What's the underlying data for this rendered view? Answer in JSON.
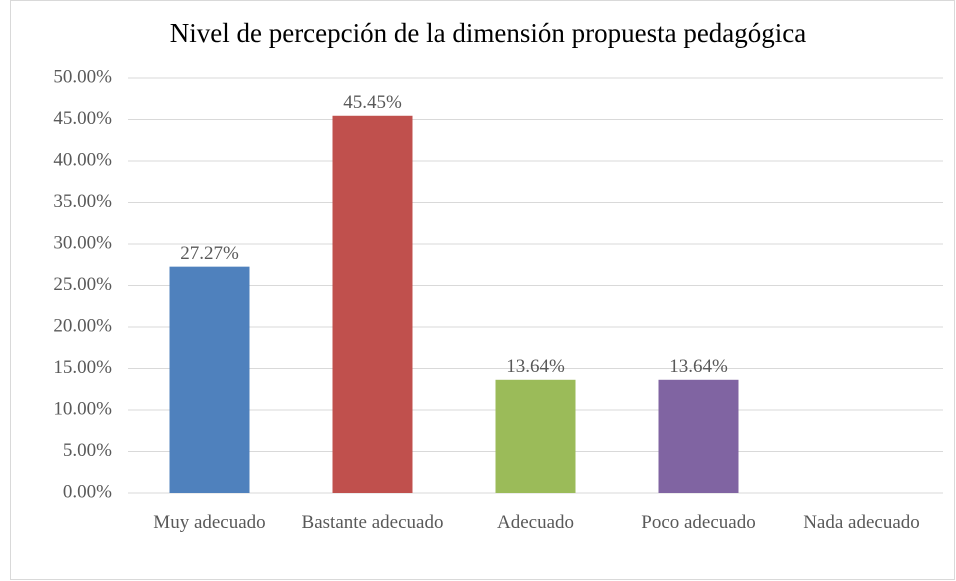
{
  "chart_data": {
    "type": "bar",
    "title": "Nivel de percepción de la dimensión propuesta pedagógica",
    "categories": [
      "Muy adecuado",
      "Bastante adecuado",
      "Adecuado",
      "Poco adecuado",
      "Nada adecuado"
    ],
    "values": [
      27.27,
      45.45,
      13.64,
      13.64,
      0
    ],
    "value_labels": [
      "27.27%",
      "45.45%",
      "13.64%",
      "13.64%",
      null
    ],
    "colors": [
      "#4f81bd",
      "#c0504d",
      "#9bbb59",
      "#8064a2",
      "#4bacc6"
    ],
    "ylim": [
      0,
      50
    ],
    "yticks": [
      {
        "value": 0,
        "label": "0.00%"
      },
      {
        "value": 5,
        "label": "5.00%"
      },
      {
        "value": 10,
        "label": "10.00%"
      },
      {
        "value": 15,
        "label": "15.00%"
      },
      {
        "value": 20,
        "label": "20.00%"
      },
      {
        "value": 25,
        "label": "25.00%"
      },
      {
        "value": 30,
        "label": "30.00%"
      },
      {
        "value": 35,
        "label": "35.00%"
      },
      {
        "value": 40,
        "label": "40.00%"
      },
      {
        "value": 45,
        "label": "45.00%"
      },
      {
        "value": 50,
        "label": "50.00%"
      }
    ],
    "grid": true
  }
}
